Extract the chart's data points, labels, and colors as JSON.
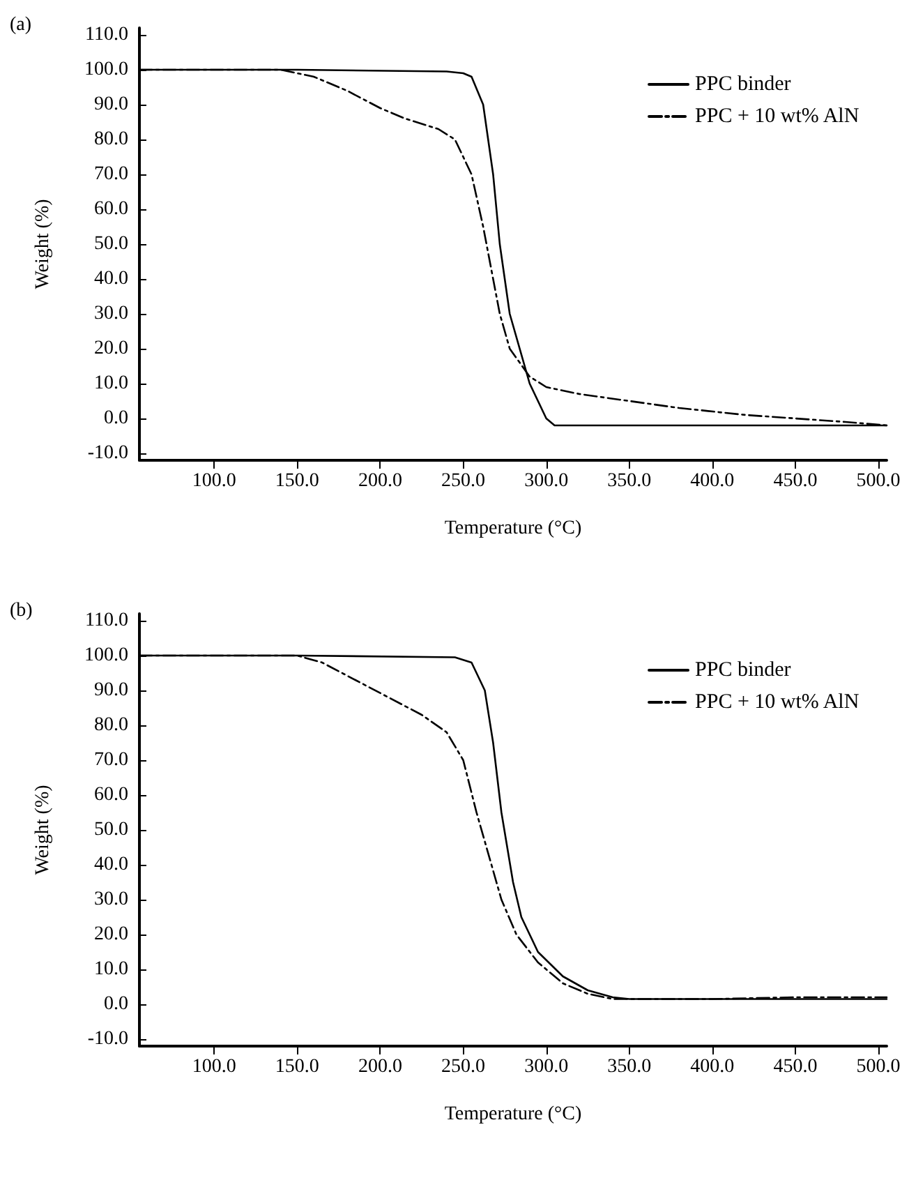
{
  "chart_data": [
    {
      "type": "line",
      "title": "(a)",
      "xlabel": "Temperature (°C)",
      "ylabel": "Weight (%)",
      "xlim": [
        55,
        505
      ],
      "ylim": [
        -12,
        112
      ],
      "xticks": [
        {
          "value": 100,
          "label": "100.0"
        },
        {
          "value": 150,
          "label": "150.0"
        },
        {
          "value": 200,
          "label": "200.0"
        },
        {
          "value": 250,
          "label": "250.0"
        },
        {
          "value": 300,
          "label": "300.0"
        },
        {
          "value": 350,
          "label": "350.0"
        },
        {
          "value": 400,
          "label": "400.0"
        },
        {
          "value": 450,
          "label": "450.0"
        },
        {
          "value": 500,
          "label": "500.0"
        }
      ],
      "yticks": [
        {
          "value": -10,
          "label": "-10.0"
        },
        {
          "value": 0,
          "label": "0.0"
        },
        {
          "value": 10,
          "label": "10.0"
        },
        {
          "value": 20,
          "label": "20.0"
        },
        {
          "value": 30,
          "label": "30.0"
        },
        {
          "value": 40,
          "label": "40.0"
        },
        {
          "value": 50,
          "label": "50.0"
        },
        {
          "value": 60,
          "label": "60.0"
        },
        {
          "value": 70,
          "label": "70.0"
        },
        {
          "value": 80,
          "label": "80.0"
        },
        {
          "value": 90,
          "label": "90.0"
        },
        {
          "value": 100,
          "label": "100.0"
        },
        {
          "value": 110,
          "label": "110.0"
        }
      ],
      "legend": "top right",
      "grid": false,
      "marker": "none",
      "series": [
        {
          "name": "PPC binder",
          "color": "#000000",
          "line_style": "solid",
          "x": [
            55,
            150,
            240,
            250,
            255,
            262,
            268,
            272,
            278,
            290,
            300,
            305,
            350,
            400,
            450,
            505
          ],
          "values": [
            100,
            100,
            99.5,
            99,
            98,
            90,
            70,
            50,
            30,
            10,
            0,
            -2,
            -2,
            -2,
            -2,
            -2
          ]
        },
        {
          "name": "PPC + 10 wt% AlN",
          "color": "#000000",
          "line_style": "dashed",
          "x": [
            55,
            140,
            160,
            180,
            200,
            215,
            235,
            245,
            255,
            262,
            268,
            272,
            278,
            290,
            300,
            320,
            350,
            380,
            420,
            450,
            480,
            505
          ],
          "values": [
            100,
            100,
            98,
            94,
            89,
            86,
            83,
            80,
            70,
            55,
            40,
            30,
            20,
            12,
            9,
            7,
            5,
            3,
            1,
            0,
            -1,
            -2
          ]
        }
      ]
    },
    {
      "type": "line",
      "title": "(b)",
      "xlabel": "Temperature (°C)",
      "ylabel": "Weight (%)",
      "xlim": [
        55,
        505
      ],
      "ylim": [
        -12,
        112
      ],
      "xticks": [
        {
          "value": 100,
          "label": "100.0"
        },
        {
          "value": 150,
          "label": "150.0"
        },
        {
          "value": 200,
          "label": "200.0"
        },
        {
          "value": 250,
          "label": "250.0"
        },
        {
          "value": 300,
          "label": "300.0"
        },
        {
          "value": 350,
          "label": "350.0"
        },
        {
          "value": 400,
          "label": "400.0"
        },
        {
          "value": 450,
          "label": "450.0"
        },
        {
          "value": 500,
          "label": "500.0"
        }
      ],
      "yticks": [
        {
          "value": -10,
          "label": "-10.0"
        },
        {
          "value": 0,
          "label": "0.0"
        },
        {
          "value": 10,
          "label": "10.0"
        },
        {
          "value": 20,
          "label": "20.0"
        },
        {
          "value": 30,
          "label": "30.0"
        },
        {
          "value": 40,
          "label": "40.0"
        },
        {
          "value": 50,
          "label": "50.0"
        },
        {
          "value": 60,
          "label": "60.0"
        },
        {
          "value": 70,
          "label": "70.0"
        },
        {
          "value": 80,
          "label": "80.0"
        },
        {
          "value": 90,
          "label": "90.0"
        },
        {
          "value": 100,
          "label": "100.0"
        },
        {
          "value": 110,
          "label": "110.0"
        }
      ],
      "legend": "top right",
      "grid": false,
      "marker": "none",
      "series": [
        {
          "name": "PPC binder",
          "color": "#000000",
          "line_style": "solid",
          "x": [
            55,
            150,
            245,
            255,
            263,
            268,
            273,
            280,
            285,
            295,
            310,
            325,
            340,
            350,
            400,
            450,
            505
          ],
          "values": [
            100,
            100,
            99.5,
            98,
            90,
            75,
            55,
            35,
            25,
            15,
            8,
            4,
            2,
            1.5,
            1.5,
            1.5,
            1.5
          ]
        },
        {
          "name": "PPC + 10 wt% AlN",
          "color": "#000000",
          "line_style": "dashed",
          "x": [
            55,
            150,
            165,
            185,
            205,
            225,
            240,
            250,
            258,
            267,
            273,
            282,
            295,
            310,
            325,
            340,
            400,
            450,
            505
          ],
          "values": [
            100,
            100,
            98,
            93,
            88,
            83,
            78,
            70,
            55,
            40,
            30,
            20,
            12,
            6,
            3,
            1.5,
            1.5,
            2,
            2
          ]
        }
      ]
    }
  ]
}
